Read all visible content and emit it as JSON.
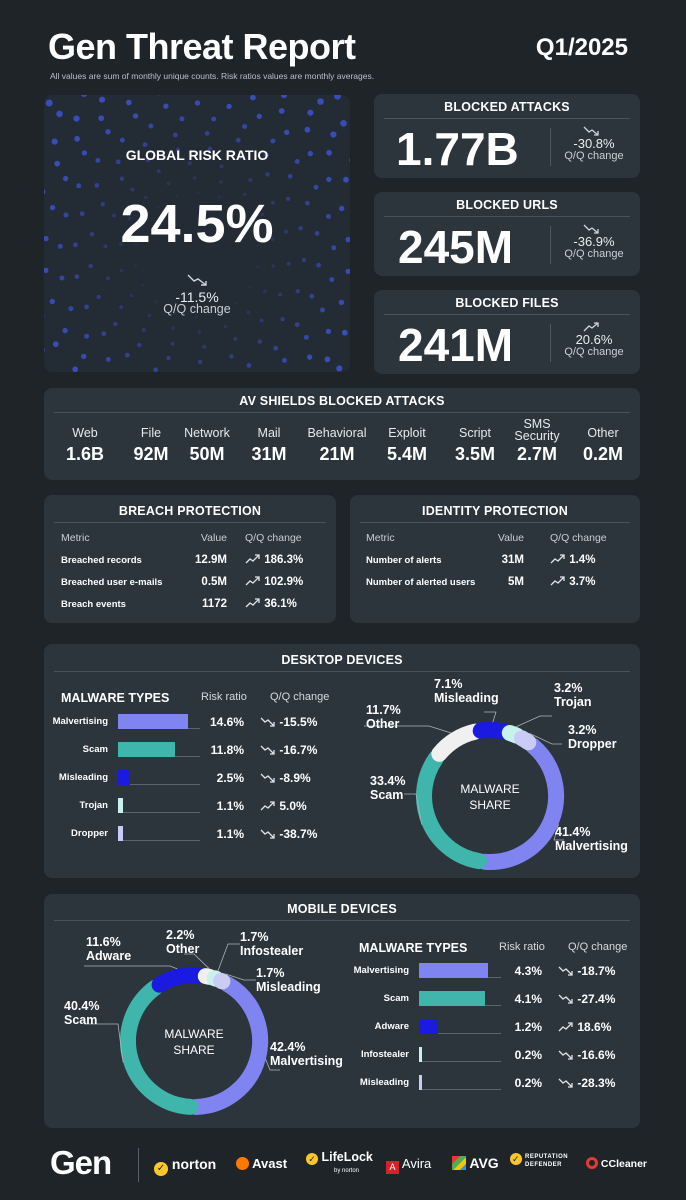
{
  "header": {
    "title": "Gen Threat Report",
    "quarter": "Q1/2025",
    "note": "All values are sum of monthly unique counts. Risk ratios values are monthly averages."
  },
  "global_risk": {
    "label": "GLOBAL RISK RATIO",
    "value": "24.5%",
    "change": "-11.5%",
    "change_label": "Q/Q change"
  },
  "blocked_attacks": {
    "label": "BLOCKED ATTACKS",
    "value": "1.77B",
    "change": "-30.8%",
    "change_label": "Q/Q change"
  },
  "blocked_urls": {
    "label": "BLOCKED URLS",
    "value": "245M",
    "change": "-36.9%",
    "change_label": "Q/Q change"
  },
  "blocked_files": {
    "label": "BLOCKED FILES",
    "value": "241M",
    "change": "20.6%",
    "change_label": "Q/Q change"
  },
  "av_shields": {
    "title": "AV SHIELDS BLOCKED ATTACKS",
    "items": [
      {
        "label": "Web",
        "value": "1.6B"
      },
      {
        "label": "File",
        "value": "92M"
      },
      {
        "label": "Network",
        "value": "50M"
      },
      {
        "label": "Mail",
        "value": "31M"
      },
      {
        "label": "Behavioral",
        "value": "21M"
      },
      {
        "label": "Exploit",
        "value": "5.4M"
      },
      {
        "label": "Script",
        "value": "3.5M"
      },
      {
        "label": "SMS Security",
        "value": "2.7M"
      },
      {
        "label": "Other",
        "value": "0.2M"
      }
    ]
  },
  "breach": {
    "title": "BREACH PROTECTION",
    "cols": [
      "Metric",
      "Value",
      "Q/Q change"
    ],
    "rows": [
      {
        "metric": "Breached records",
        "value": "12.9M",
        "change": "186.3%"
      },
      {
        "metric": "Breached user e-mails",
        "value": "0.5M",
        "change": "102.9%"
      },
      {
        "metric": "Breach events",
        "value": "1172",
        "change": "36.1%"
      }
    ]
  },
  "identity": {
    "title": "IDENTITY PROTECTION",
    "cols": [
      "Metric",
      "Value",
      "Q/Q change"
    ],
    "rows": [
      {
        "metric": "Number of alerts",
        "value": "31M",
        "change": "1.4%"
      },
      {
        "metric": "Number of alerted users",
        "value": "5M",
        "change": "3.7%"
      }
    ]
  },
  "desktop": {
    "title": "DESKTOP DEVICES",
    "head": "MALWARE TYPES",
    "col_ratio": "Risk ratio",
    "col_change": "Q/Q change",
    "rows": [
      {
        "name": "Malvertising",
        "ratio": "14.6%",
        "ratio_value": 14.6,
        "change": "-15.5%",
        "dir": "down",
        "color": "#7f84f0"
      },
      {
        "name": "Scam",
        "ratio": "11.8%",
        "ratio_value": 11.8,
        "change": "-16.7%",
        "dir": "down",
        "color": "#3fb5ac"
      },
      {
        "name": "Misleading",
        "ratio": "2.5%",
        "ratio_value": 2.5,
        "change": "-8.9%",
        "dir": "down",
        "color": "#1a1ae0"
      },
      {
        "name": "Trojan",
        "ratio": "1.1%",
        "ratio_value": 1.1,
        "change": "5.0%",
        "dir": "up",
        "color": "#c8f0ee"
      },
      {
        "name": "Dropper",
        "ratio": "1.1%",
        "ratio_value": 1.1,
        "change": "-38.7%",
        "dir": "down",
        "color": "#c9ccf5"
      }
    ],
    "share_label": "MALWARE\nSHARE",
    "share": [
      {
        "name": "Malvertising",
        "pct": "41.4%",
        "value": 41.4,
        "color": "#7f84f0"
      },
      {
        "name": "Scam",
        "pct": "33.4%",
        "value": 33.4,
        "color": "#3fb5ac"
      },
      {
        "name": "Other",
        "pct": "11.7%",
        "value": 11.7,
        "color": "#f0f0f0"
      },
      {
        "name": "Misleading",
        "pct": "7.1%",
        "value": 7.1,
        "color": "#1a1ae0"
      },
      {
        "name": "Trojan",
        "pct": "3.2%",
        "value": 3.2,
        "color": "#c8f0ee"
      },
      {
        "name": "Dropper",
        "pct": "3.2%",
        "value": 3.2,
        "color": "#c9ccf5"
      }
    ]
  },
  "mobile": {
    "title": "MOBILE DEVICES",
    "head": "MALWARE TYPES",
    "col_ratio": "Risk ratio",
    "col_change": "Q/Q change",
    "rows": [
      {
        "name": "Malvertising",
        "ratio": "4.3%",
        "ratio_value": 4.3,
        "change": "-18.7%",
        "dir": "down",
        "color": "#7f84f0"
      },
      {
        "name": "Scam",
        "ratio": "4.1%",
        "ratio_value": 4.1,
        "change": "-27.4%",
        "dir": "down",
        "color": "#3fb5ac"
      },
      {
        "name": "Adware",
        "ratio": "1.2%",
        "ratio_value": 1.2,
        "change": "18.6%",
        "dir": "up",
        "color": "#1a1ae0"
      },
      {
        "name": "Infostealer",
        "ratio": "0.2%",
        "ratio_value": 0.2,
        "change": "-16.6%",
        "dir": "down",
        "color": "#c8f0ee"
      },
      {
        "name": "Misleading",
        "ratio": "0.2%",
        "ratio_value": 0.2,
        "change": "-28.3%",
        "dir": "down",
        "color": "#c9ccf5"
      }
    ],
    "share_label": "MALWARE\nSHARE",
    "share": [
      {
        "name": "Malvertising",
        "pct": "42.4%",
        "value": 42.4,
        "color": "#7f84f0"
      },
      {
        "name": "Scam",
        "pct": "40.4%",
        "value": 40.4,
        "color": "#3fb5ac"
      },
      {
        "name": "Adware",
        "pct": "11.6%",
        "value": 11.6,
        "color": "#1a1ae0"
      },
      {
        "name": "Other",
        "pct": "2.2%",
        "value": 2.2,
        "color": "#f0f0f0"
      },
      {
        "name": "Infostealer",
        "pct": "1.7%",
        "value": 1.7,
        "color": "#c8f0ee"
      },
      {
        "name": "Misleading",
        "pct": "1.7%",
        "value": 1.7,
        "color": "#c9ccf5"
      }
    ]
  },
  "footer": {
    "brand": "Gen",
    "logos": [
      "norton",
      "Avast",
      "LifeLock",
      "Avira",
      "AVG",
      "REPUTATION DEFENDER",
      "CCleaner"
    ],
    "lifelock_sub": "by norton"
  }
}
